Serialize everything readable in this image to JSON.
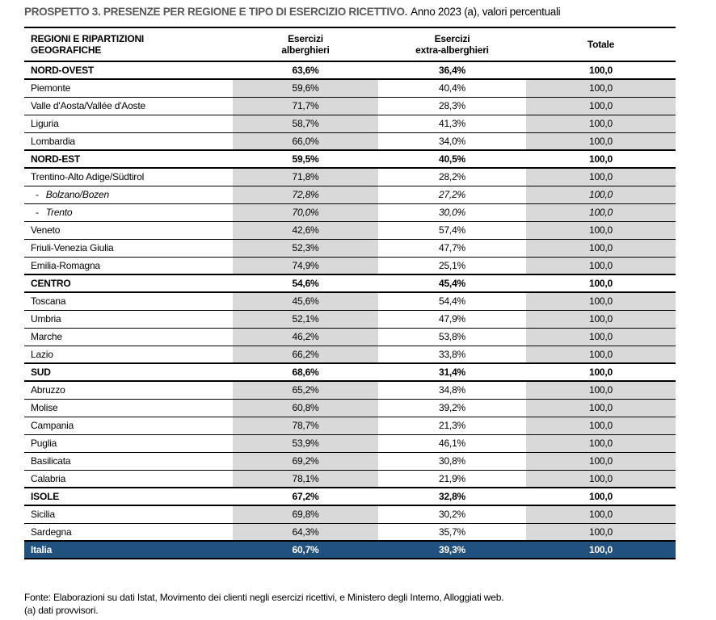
{
  "title": {
    "main": "PROSPETTO 3. PRESENZE PER REGIONE E TIPO DI ESERCIZIO RICETTIVO.",
    "subtitle": "Anno 2023 (a), valori percentuali"
  },
  "table": {
    "headers": {
      "region_line1": "REGIONI E RIPARTIZIONI",
      "region_line2": "GEOGRAFICHE",
      "hotel_line1": "Esercizi",
      "hotel_line2": "alberghieri",
      "extra_line1": "Esercizi",
      "extra_line2": "extra-alberghieri",
      "total": "Totale"
    },
    "rows": [
      {
        "name": "NORD-OVEST",
        "hotel": "63,6%",
        "extra": "36,4%",
        "total": "100,0",
        "type": "section"
      },
      {
        "name": "Piemonte",
        "hotel": "59,6%",
        "extra": "40,4%",
        "total": "100,0",
        "type": "region"
      },
      {
        "name": "Valle d'Aosta/Vallée d'Aoste",
        "hotel": "71,7%",
        "extra": "28,3%",
        "total": "100,0",
        "type": "region"
      },
      {
        "name": "Liguria",
        "hotel": "58,7%",
        "extra": "41,3%",
        "total": "100,0",
        "type": "region"
      },
      {
        "name": "Lombardia",
        "hotel": "66,0%",
        "extra": "34,0%",
        "total": "100,0",
        "type": "region"
      },
      {
        "name": "NORD-EST",
        "hotel": "59,5%",
        "extra": "40,5%",
        "total": "100,0",
        "type": "section"
      },
      {
        "name": "Trentino-Alto Adige/Südtirol",
        "hotel": "71,8%",
        "extra": "28,2%",
        "total": "100,0",
        "type": "region"
      },
      {
        "name": "Bolzano/Bozen",
        "prefix": "-",
        "hotel": "72,8%",
        "extra": "27,2%",
        "total": "100,0",
        "type": "sub"
      },
      {
        "name": "Trento",
        "prefix": "-",
        "hotel": "70,0%",
        "extra": "30,0%",
        "total": "100,0",
        "type": "sub"
      },
      {
        "name": "Veneto",
        "hotel": "42,6%",
        "extra": "57,4%",
        "total": "100,0",
        "type": "region"
      },
      {
        "name": "Friuli-Venezia Giulia",
        "hotel": "52,3%",
        "extra": "47,7%",
        "total": "100,0",
        "type": "region"
      },
      {
        "name": "Emilia-Romagna",
        "hotel": "74,9%",
        "extra": "25,1%",
        "total": "100,0",
        "type": "region"
      },
      {
        "name": "CENTRO",
        "hotel": "54,6%",
        "extra": "45,4%",
        "total": "100,0",
        "type": "section"
      },
      {
        "name": "Toscana",
        "hotel": "45,6%",
        "extra": "54,4%",
        "total": "100,0",
        "type": "region"
      },
      {
        "name": "Umbria",
        "hotel": "52,1%",
        "extra": "47,9%",
        "total": "100,0",
        "type": "region"
      },
      {
        "name": "Marche",
        "hotel": "46,2%",
        "extra": "53,8%",
        "total": "100,0",
        "type": "region"
      },
      {
        "name": "Lazio",
        "hotel": "66,2%",
        "extra": "33,8%",
        "total": "100,0",
        "type": "region"
      },
      {
        "name": "SUD",
        "hotel": "68,6%",
        "extra": "31,4%",
        "total": "100,0",
        "type": "section"
      },
      {
        "name": "Abruzzo",
        "hotel": "65,2%",
        "extra": "34,8%",
        "total": "100,0",
        "type": "region"
      },
      {
        "name": "Molise",
        "hotel": "60,8%",
        "extra": "39,2%",
        "total": "100,0",
        "type": "region"
      },
      {
        "name": "Campania",
        "hotel": "78,7%",
        "extra": "21,3%",
        "total": "100,0",
        "type": "region"
      },
      {
        "name": "Puglia",
        "hotel": "53,9%",
        "extra": "46,1%",
        "total": "100,0",
        "type": "region"
      },
      {
        "name": "Basilicata",
        "hotel": "69,2%",
        "extra": "30,8%",
        "total": "100,0",
        "type": "region"
      },
      {
        "name": "Calabria",
        "hotel": "78,1%",
        "extra": "21,9%",
        "total": "100,0",
        "type": "region"
      },
      {
        "name": "ISOLE",
        "hotel": "67,2%",
        "extra": "32,8%",
        "total": "100,0",
        "type": "section"
      },
      {
        "name": "Sicilia",
        "hotel": "69,8%",
        "extra": "30,2%",
        "total": "100,0",
        "type": "region"
      },
      {
        "name": "Sardegna",
        "hotel": "64,3%",
        "extra": "35,7%",
        "total": "100,0",
        "type": "region"
      },
      {
        "name": "Italia",
        "hotel": "60,7%",
        "extra": "39,3%",
        "total": "100,0",
        "type": "total"
      }
    ]
  },
  "footer": {
    "source": "Fonte: Elaborazioni su dati Istat, Movimento dei clienti negli esercizi ricettivi, e Ministero degli Interno, Alloggiati web.",
    "note": "(a) dati provvisori."
  },
  "colors": {
    "shade_grey": "#D9D9D9",
    "italia_row_blue": "#21517F",
    "title_grey": "#595959"
  }
}
